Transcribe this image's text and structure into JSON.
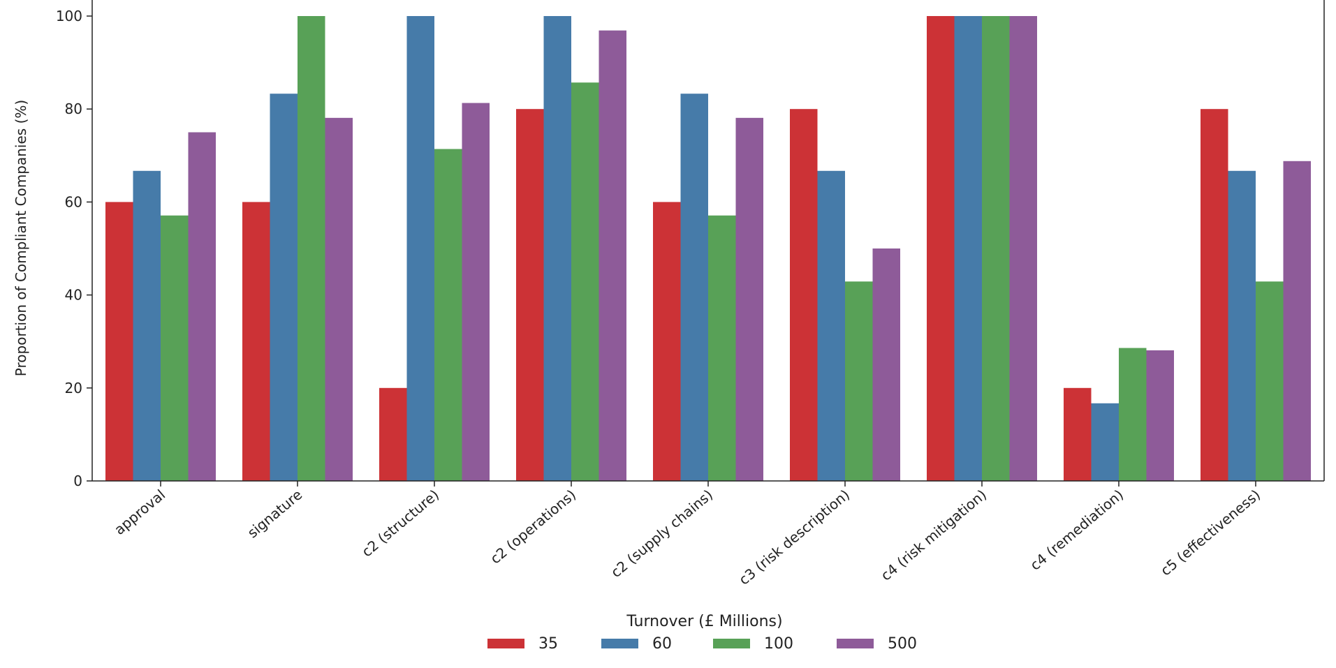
{
  "chart_data": {
    "type": "bar",
    "title": "",
    "xlabel": "",
    "ylabel": "Proportion of Compliant Companies (%)",
    "ylim": [
      0,
      100
    ],
    "yticks": [
      0,
      20,
      40,
      60,
      80,
      100
    ],
    "categories": [
      "approval",
      "signature",
      "c2 (structure)",
      "c2 (operations)",
      "c2 (supply chains)",
      "c3 (risk description)",
      "c4 (risk mitigation)",
      "c4 (remediation)",
      "c5 (effectiveness)"
    ],
    "series": [
      {
        "name": "35",
        "color": "#cc3236",
        "values": [
          60,
          60,
          20,
          80,
          60,
          80,
          100,
          20,
          80
        ]
      },
      {
        "name": "60",
        "color": "#467ba9",
        "values": [
          66.7,
          83.3,
          100,
          100,
          83.3,
          66.7,
          100,
          16.7,
          66.7
        ]
      },
      {
        "name": "100",
        "color": "#58a157",
        "values": [
          57.1,
          100,
          71.4,
          85.7,
          57.1,
          42.9,
          100,
          28.6,
          42.9
        ]
      },
      {
        "name": "500",
        "color": "#8e5b99",
        "values": [
          75,
          78.1,
          81.3,
          96.9,
          78.1,
          50,
          100,
          28.1,
          68.8
        ]
      }
    ],
    "legend": {
      "title": "Turnover (£ Millions)",
      "placement": "bottom-center"
    },
    "grid": false
  }
}
